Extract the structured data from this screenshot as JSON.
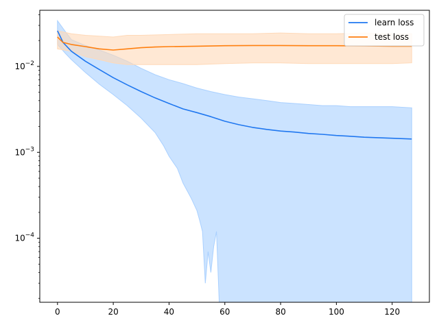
{
  "chart_data": {
    "type": "line",
    "title": "",
    "xlabel": "",
    "ylabel": "",
    "xlim": [
      -6.35,
      133.35
    ],
    "ylim": [
      1.8e-05,
      0.045
    ],
    "yscale": "log",
    "grid": false,
    "legend_position": "top-right",
    "x_ticks": [
      0,
      20,
      40,
      60,
      80,
      100,
      120
    ],
    "y_ticks": [
      {
        "value": 0.0001,
        "base": "10",
        "exp": "−4"
      },
      {
        "value": 0.001,
        "base": "10",
        "exp": "−3"
      },
      {
        "value": 0.01,
        "base": "10",
        "exp": "−2"
      }
    ],
    "series": [
      {
        "name": "learn loss",
        "color": "#1f77f0",
        "band_color": "#a9d0ff",
        "mean": [
          [
            0,
            0.026
          ],
          [
            2,
            0.019
          ],
          [
            5,
            0.015
          ],
          [
            10,
            0.0115
          ],
          [
            15,
            0.0092
          ],
          [
            20,
            0.0074
          ],
          [
            25,
            0.0061
          ],
          [
            30,
            0.0051
          ],
          [
            35,
            0.0043
          ],
          [
            40,
            0.0037
          ],
          [
            45,
            0.0032
          ],
          [
            50,
            0.0029
          ],
          [
            55,
            0.0026
          ],
          [
            60,
            0.0023
          ],
          [
            65,
            0.0021
          ],
          [
            70,
            0.00195
          ],
          [
            75,
            0.00185
          ],
          [
            80,
            0.00177
          ],
          [
            85,
            0.00172
          ],
          [
            90,
            0.00166
          ],
          [
            95,
            0.00162
          ],
          [
            100,
            0.00157
          ],
          [
            105,
            0.00154
          ],
          [
            110,
            0.0015
          ],
          [
            115,
            0.00148
          ],
          [
            120,
            0.00146
          ],
          [
            127,
            0.00143
          ]
        ],
        "upper": [
          [
            0,
            0.034
          ],
          [
            3,
            0.025
          ],
          [
            5,
            0.0205
          ],
          [
            10,
            0.0175
          ],
          [
            15,
            0.0155
          ],
          [
            20,
            0.0135
          ],
          [
            25,
            0.0115
          ],
          [
            30,
            0.0095
          ],
          [
            35,
            0.008
          ],
          [
            40,
            0.007
          ],
          [
            45,
            0.0063
          ],
          [
            50,
            0.0056
          ],
          [
            55,
            0.0051
          ],
          [
            60,
            0.0047
          ],
          [
            65,
            0.0044
          ],
          [
            70,
            0.0042
          ],
          [
            75,
            0.004
          ],
          [
            80,
            0.0038
          ],
          [
            85,
            0.0037
          ],
          [
            90,
            0.0036
          ],
          [
            95,
            0.0035
          ],
          [
            100,
            0.0035
          ],
          [
            105,
            0.0034
          ],
          [
            110,
            0.0034
          ],
          [
            115,
            0.0034
          ],
          [
            120,
            0.0034
          ],
          [
            127,
            0.0033
          ]
        ],
        "lower": [
          [
            0,
            0.018
          ],
          [
            3,
            0.014
          ],
          [
            5,
            0.012
          ],
          [
            10,
            0.0085
          ],
          [
            15,
            0.0062
          ],
          [
            20,
            0.0047
          ],
          [
            25,
            0.0035
          ],
          [
            30,
            0.0025
          ],
          [
            35,
            0.0017
          ],
          [
            38,
            0.0012
          ],
          [
            40,
            0.0009
          ],
          [
            43,
            0.00065
          ],
          [
            45,
            0.00044
          ],
          [
            48,
            0.00029
          ],
          [
            50,
            0.00021
          ],
          [
            51,
            0.00016
          ],
          [
            52,
            0.00012
          ],
          [
            53,
            3e-05
          ],
          [
            54,
            7e-05
          ],
          [
            55,
            4e-05
          ],
          [
            56,
            8e-05
          ],
          [
            57,
            0.00012
          ],
          [
            58,
            1.8e-05
          ],
          [
            60,
            1.8e-05
          ],
          [
            127,
            1.8e-05
          ]
        ]
      },
      {
        "name": "test loss",
        "color": "#ff7f0e",
        "band_color": "#ffd9b8",
        "mean": [
          [
            0,
            0.022
          ],
          [
            2,
            0.019
          ],
          [
            5,
            0.018
          ],
          [
            10,
            0.017
          ],
          [
            15,
            0.016
          ],
          [
            20,
            0.0155
          ],
          [
            25,
            0.016
          ],
          [
            30,
            0.0165
          ],
          [
            35,
            0.0168
          ],
          [
            40,
            0.017
          ],
          [
            50,
            0.0172
          ],
          [
            60,
            0.0174
          ],
          [
            70,
            0.0175
          ],
          [
            80,
            0.0175
          ],
          [
            90,
            0.0174
          ],
          [
            100,
            0.0174
          ],
          [
            110,
            0.0173
          ],
          [
            120,
            0.0172
          ],
          [
            127,
            0.0172
          ]
        ],
        "upper": [
          [
            0,
            0.026
          ],
          [
            5,
            0.024
          ],
          [
            10,
            0.023
          ],
          [
            20,
            0.022
          ],
          [
            25,
            0.023
          ],
          [
            30,
            0.023
          ],
          [
            40,
            0.0235
          ],
          [
            50,
            0.024
          ],
          [
            60,
            0.024
          ],
          [
            70,
            0.024
          ],
          [
            80,
            0.0245
          ],
          [
            90,
            0.024
          ],
          [
            100,
            0.024
          ],
          [
            110,
            0.0245
          ],
          [
            120,
            0.024
          ],
          [
            127,
            0.024
          ]
        ],
        "lower": [
          [
            0,
            0.016
          ],
          [
            5,
            0.015
          ],
          [
            10,
            0.013
          ],
          [
            15,
            0.012
          ],
          [
            20,
            0.011
          ],
          [
            25,
            0.0105
          ],
          [
            30,
            0.0105
          ],
          [
            40,
            0.0105
          ],
          [
            50,
            0.0105
          ],
          [
            60,
            0.0108
          ],
          [
            70,
            0.011
          ],
          [
            80,
            0.011
          ],
          [
            90,
            0.0108
          ],
          [
            100,
            0.0108
          ],
          [
            110,
            0.0108
          ],
          [
            120,
            0.0108
          ],
          [
            127,
            0.011
          ]
        ]
      }
    ]
  }
}
